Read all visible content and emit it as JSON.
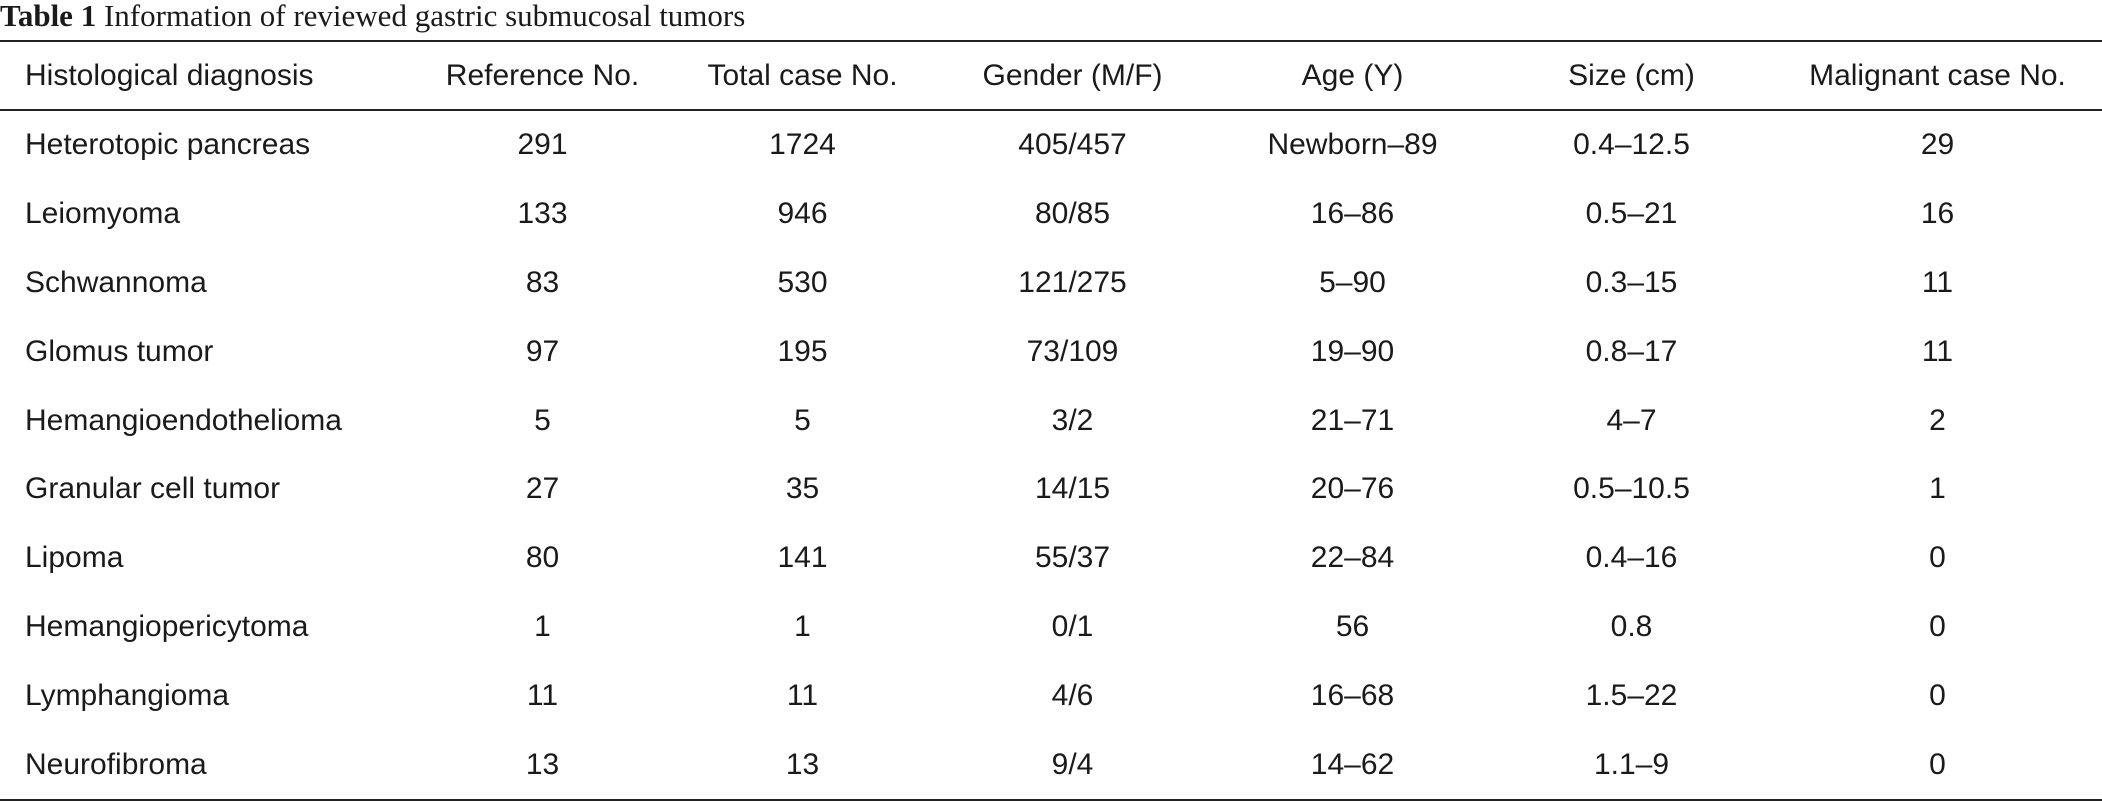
{
  "caption": {
    "label": "Table 1",
    "text": " Information of reviewed gastric submucosal tumors"
  },
  "table": {
    "headers": [
      "Histological diagnosis",
      "Reference No.",
      "Total case No.",
      "Gender (M/F)",
      "Age (Y)",
      "Size (cm)",
      "Malignant case No."
    ],
    "rows": [
      [
        "Heterotopic pancreas",
        "291",
        "1724",
        "405/457",
        "Newborn–89",
        "0.4–12.5",
        "29"
      ],
      [
        "Leiomyoma",
        "133",
        "946",
        "80/85",
        "16–86",
        "0.5–21",
        "16"
      ],
      [
        "Schwannoma",
        "83",
        "530",
        "121/275",
        "5–90",
        "0.3–15",
        "11"
      ],
      [
        "Glomus tumor",
        "97",
        "195",
        "73/109",
        "19–90",
        "0.8–17",
        "11"
      ],
      [
        "Hemangioendothelioma",
        "5",
        "5",
        "3/2",
        "21–71",
        "4–7",
        "2"
      ],
      [
        "Granular cell tumor",
        "27",
        "35",
        "14/15",
        "20–76",
        "0.5–10.5",
        "1"
      ],
      [
        "Lipoma",
        "80",
        "141",
        "55/37",
        "22–84",
        "0.4–16",
        "0"
      ],
      [
        "Hemangiopericytoma",
        "1",
        "1",
        "0/1",
        "56",
        "0.8",
        "0"
      ],
      [
        "Lymphangioma",
        "11",
        "11",
        "4/6",
        "16–68",
        "1.5–22",
        "0"
      ],
      [
        "Neurofibroma",
        "13",
        "13",
        "9/4",
        "14–62",
        "1.1–9",
        "0"
      ]
    ]
  }
}
